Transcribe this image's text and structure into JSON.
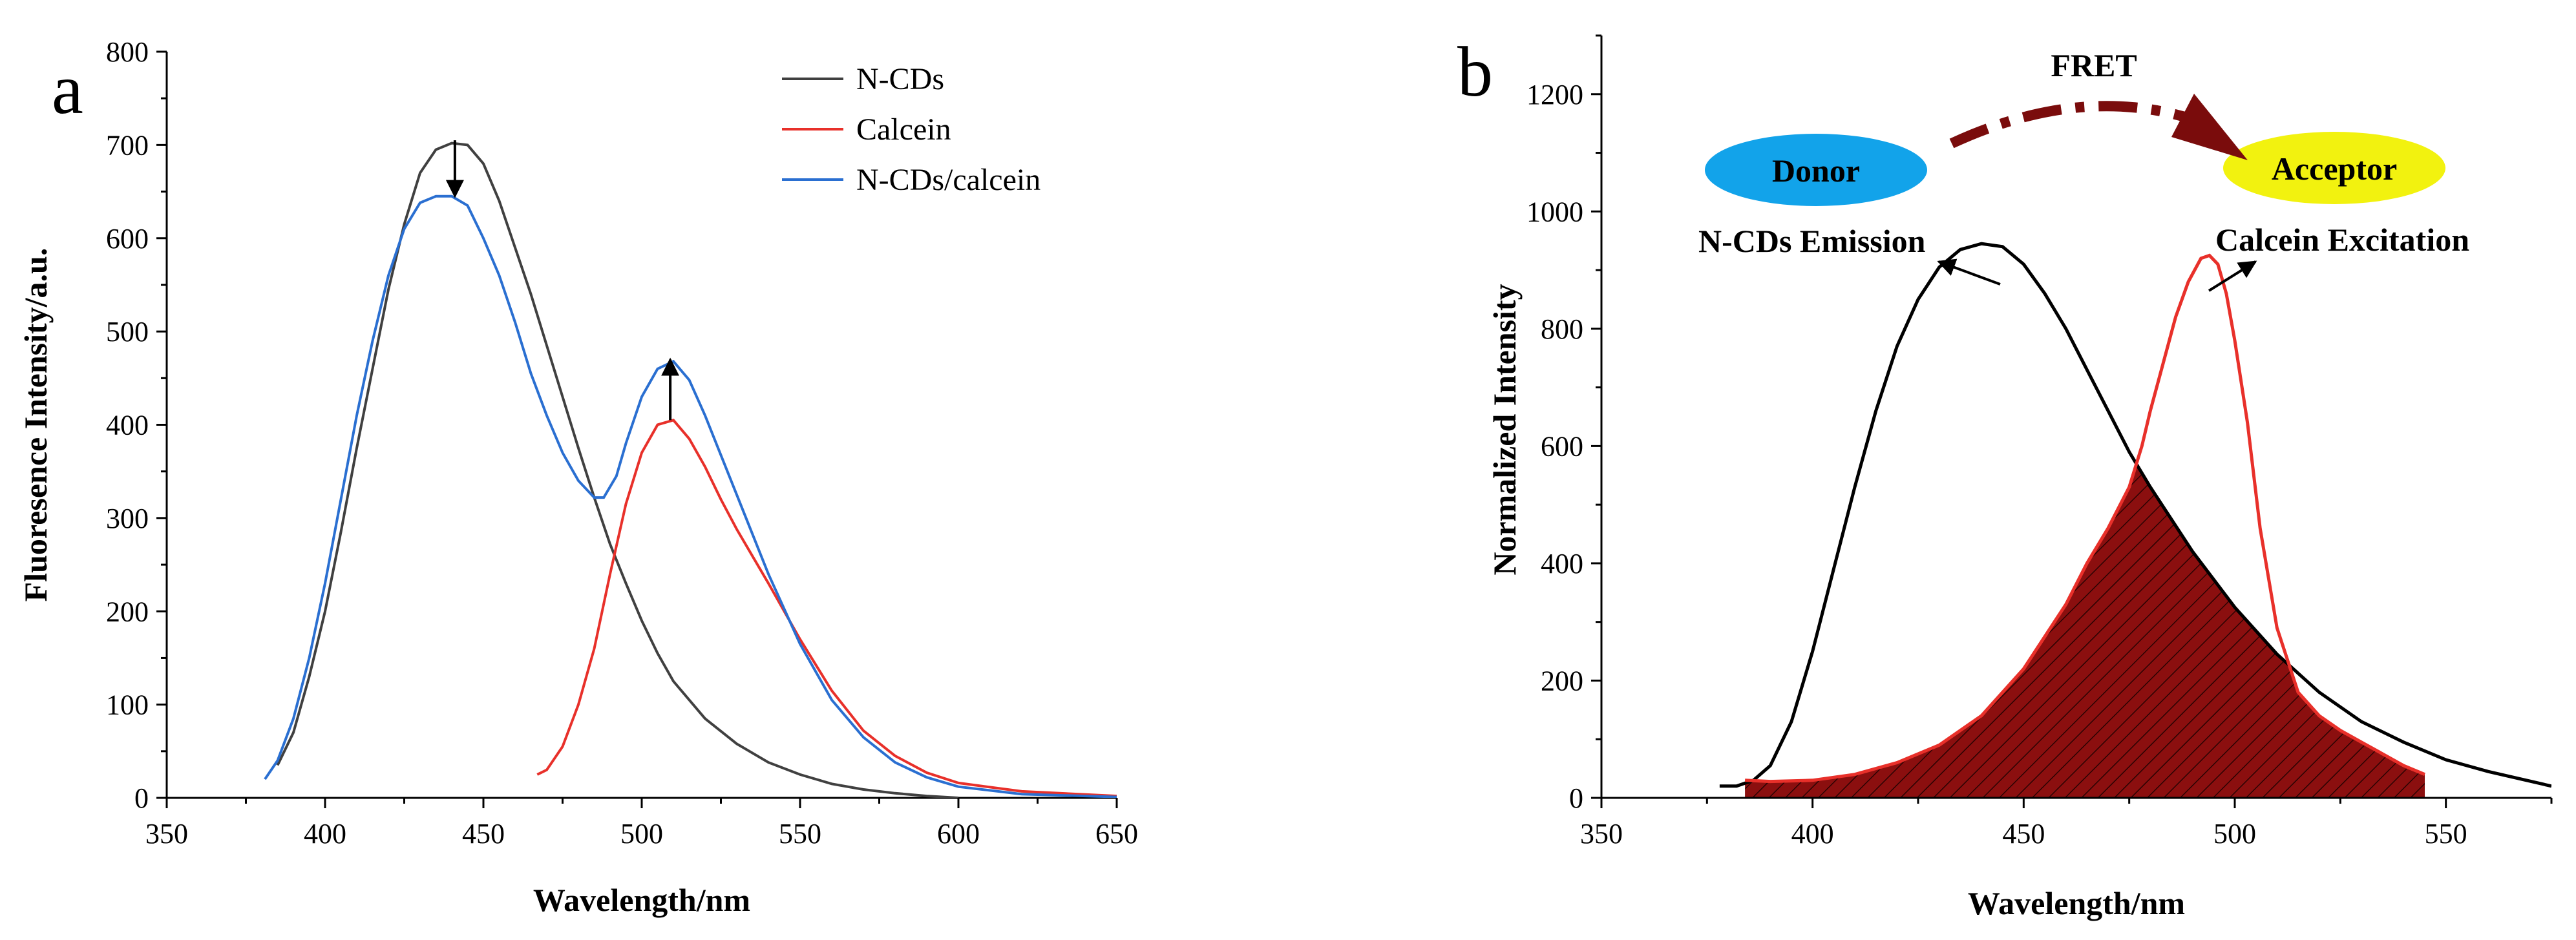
{
  "chart_data": [
    {
      "type": "line",
      "panel_label": "a",
      "xlabel": "Wavelength/nm",
      "ylabel": "Fluoresence Intensity/a.u.",
      "xlim": [
        350,
        650
      ],
      "ylim": [
        0,
        800
      ],
      "xticks": [
        350,
        400,
        450,
        500,
        550,
        600,
        650
      ],
      "yticks": [
        0,
        100,
        200,
        300,
        400,
        500,
        600,
        700,
        800
      ],
      "legend_position": "top-right",
      "series": [
        {
          "name": "N-CDs",
          "color": "#404040",
          "x": [
            385,
            390,
            395,
            400,
            405,
            410,
            415,
            420,
            425,
            430,
            435,
            440,
            445,
            450,
            455,
            460,
            465,
            470,
            475,
            480,
            485,
            490,
            495,
            500,
            505,
            510,
            520,
            530,
            540,
            550,
            560,
            570,
            580,
            590,
            600
          ],
          "y": [
            35,
            70,
            130,
            200,
            285,
            375,
            460,
            545,
            615,
            670,
            695,
            702,
            700,
            680,
            640,
            590,
            540,
            485,
            430,
            375,
            322,
            272,
            230,
            190,
            155,
            125,
            85,
            58,
            38,
            25,
            15,
            9,
            5,
            2,
            0
          ]
        },
        {
          "name": "Calcein",
          "color": "#e8302a",
          "x": [
            467,
            470,
            475,
            480,
            485,
            490,
            495,
            500,
            505,
            510,
            515,
            520,
            525,
            530,
            540,
            550,
            560,
            570,
            580,
            590,
            600,
            620,
            650
          ],
          "y": [
            25,
            30,
            55,
            100,
            160,
            240,
            315,
            370,
            400,
            405,
            385,
            355,
            320,
            288,
            230,
            170,
            115,
            72,
            45,
            27,
            16,
            7,
            2
          ]
        },
        {
          "name": "N-CDs/calcein",
          "color": "#2a6fd1",
          "x": [
            381,
            385,
            390,
            395,
            400,
            405,
            410,
            415,
            420,
            425,
            430,
            435,
            440,
            445,
            450,
            455,
            460,
            465,
            470,
            475,
            480,
            485,
            488,
            492,
            495,
            500,
            505,
            510,
            515,
            520,
            530,
            540,
            550,
            560,
            570,
            580,
            590,
            600,
            620,
            650
          ],
          "y": [
            20,
            40,
            85,
            150,
            230,
            320,
            410,
            490,
            560,
            610,
            638,
            645,
            645,
            635,
            600,
            560,
            510,
            455,
            410,
            370,
            340,
            322,
            322,
            345,
            380,
            430,
            460,
            468,
            448,
            410,
            325,
            240,
            165,
            105,
            65,
            38,
            22,
            12,
            4,
            1
          ]
        }
      ],
      "annotations": [
        {
          "text": "down-arrow",
          "x": 441,
          "y_from": 705,
          "y_to": 645
        },
        {
          "text": "up-arrow",
          "x": 509,
          "y_from": 405,
          "y_to": 470
        }
      ]
    },
    {
      "type": "area",
      "panel_label": "b",
      "xlabel": "Wavelength/nm",
      "ylabel": "Normalized Intensity",
      "xlim": [
        350,
        575
      ],
      "ylim": [
        0,
        1300
      ],
      "xticks": [
        350,
        400,
        450,
        500,
        550
      ],
      "yticks": [
        0,
        200,
        400,
        600,
        800,
        1000,
        1200
      ],
      "series": [
        {
          "name": "N-CDs Emission",
          "color": "#000000",
          "x": [
            378,
            382,
            386,
            390,
            395,
            400,
            405,
            410,
            415,
            420,
            425,
            430,
            435,
            440,
            445,
            450,
            455,
            460,
            465,
            470,
            475,
            480,
            490,
            500,
            510,
            520,
            530,
            540,
            550,
            560,
            575
          ],
          "y": [
            20,
            20,
            30,
            55,
            130,
            250,
            390,
            530,
            660,
            770,
            850,
            905,
            935,
            945,
            940,
            910,
            860,
            800,
            730,
            660,
            590,
            530,
            420,
            325,
            245,
            180,
            130,
            95,
            65,
            45,
            20
          ]
        },
        {
          "name": "Calcein Excitation",
          "color": "#e8302a",
          "x": [
            384,
            390,
            400,
            410,
            420,
            430,
            440,
            450,
            460,
            465,
            470,
            475,
            478,
            480,
            483,
            486,
            489,
            492,
            494,
            496,
            498,
            500,
            503,
            506,
            510,
            515,
            520,
            525,
            530,
            535,
            540,
            545
          ],
          "y": [
            30,
            28,
            30,
            40,
            60,
            90,
            140,
            220,
            330,
            400,
            460,
            530,
            600,
            660,
            740,
            820,
            880,
            920,
            925,
            910,
            860,
            780,
            640,
            460,
            290,
            180,
            140,
            115,
            95,
            75,
            55,
            40
          ]
        }
      ],
      "overlap_fill": {
        "color": "#7a0c0c",
        "hatch": true,
        "x_range": [
          384,
          545
        ]
      },
      "labels": {
        "donor": "Donor",
        "acceptor": "Acceptor",
        "fret": "FRET",
        "donor_curve": "N-CDs Emission",
        "acceptor_curve": "Calcein Excitation"
      },
      "colors": {
        "donor_ellipse": "#12a3ea",
        "acceptor_ellipse": "#f2f20f",
        "fret_arrow": "#7a0c0c"
      }
    }
  ]
}
